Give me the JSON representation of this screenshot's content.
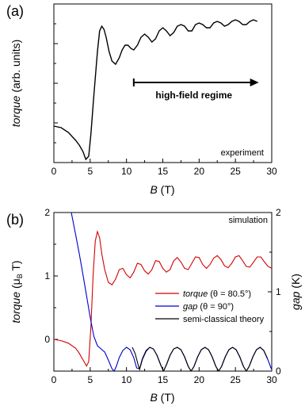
{
  "chart_data": [
    {
      "panel": "(a)",
      "type": "line",
      "xlabel_var": "B",
      "xlabel_unit": " (T)",
      "ylabel_var": "torque",
      "ylabel_unit": " (arb. units)",
      "xlim": [
        0,
        30
      ],
      "xticks": [
        "0",
        "5",
        "10",
        "15",
        "20",
        "25",
        "30"
      ],
      "yticks_labeled": false,
      "annotation_corner": "experiment",
      "regime_label": "high-field regime",
      "regime_arrow_x": [
        11,
        28
      ],
      "series": [
        {
          "color": "#000000",
          "x": [
            0,
            1,
            2,
            3,
            3.5,
            4,
            4.4,
            4.8,
            5.1,
            5.5,
            6,
            6.3,
            6.6,
            6.9,
            7.2,
            7.6,
            8,
            8.5,
            9,
            9.4,
            9.8,
            10.2,
            10.6,
            11,
            11.5,
            12,
            12.5,
            13,
            13.5,
            14,
            14.5,
            15,
            15.5,
            16,
            16.5,
            17,
            17.5,
            18,
            18.5,
            19,
            19.5,
            20,
            20.5,
            21,
            21.5,
            22,
            22.5,
            23,
            23.5,
            24,
            24.5,
            25,
            25.5,
            26,
            26.5,
            27,
            27.5,
            28
          ],
          "y": [
            0.23,
            0.22,
            0.19,
            0.14,
            0.11,
            0.07,
            0.02,
            0.04,
            0.18,
            0.42,
            0.7,
            0.83,
            0.86,
            0.84,
            0.79,
            0.7,
            0.64,
            0.62,
            0.66,
            0.71,
            0.74,
            0.74,
            0.72,
            0.71,
            0.74,
            0.79,
            0.81,
            0.79,
            0.76,
            0.78,
            0.83,
            0.85,
            0.83,
            0.8,
            0.82,
            0.86,
            0.87,
            0.86,
            0.83,
            0.83,
            0.87,
            0.88,
            0.87,
            0.85,
            0.85,
            0.88,
            0.89,
            0.88,
            0.86,
            0.87,
            0.89,
            0.9,
            0.89,
            0.87,
            0.87,
            0.89,
            0.9,
            0.89
          ]
        }
      ]
    },
    {
      "panel": "(b)",
      "type": "line",
      "xlabel_var": "B",
      "xlabel_unit": " (T)",
      "ylabel_left_var": "torque",
      "ylabel_left_unit": " (μ",
      "ylabel_left_sub": "B",
      "ylabel_left_end": " T)",
      "ylabel_right_var": "gap",
      "ylabel_right_unit": " (K)",
      "xlim": [
        0,
        30
      ],
      "ylim_left": [
        -0.5,
        2
      ],
      "ylim_right": [
        0,
        2
      ],
      "xticks": [
        "0",
        "5",
        "10",
        "15",
        "20",
        "25",
        "30"
      ],
      "yticks_left": [
        "0",
        "1",
        "2"
      ],
      "yticks_right": [
        "0",
        "1",
        "2"
      ],
      "annotation_corner": "simulation",
      "legend": [
        {
          "var": "torque",
          "rest": " (θ = 80.5°)",
          "color": "#d40000"
        },
        {
          "var": "gap",
          "rest": " (θ = 90°)",
          "color": "#0000cc"
        },
        {
          "var": "",
          "rest": "semi-classical theory",
          "color": "#000000"
        }
      ],
      "series": [
        {
          "axis": "left",
          "color": "#d40000",
          "x": [
            0,
            1,
            2,
            3,
            3.5,
            4,
            4.5,
            4.8,
            5.1,
            5.4,
            5.7,
            6,
            6.3,
            6.6,
            7,
            7.5,
            8,
            8.5,
            9,
            9.5,
            10,
            10.5,
            11,
            11.5,
            12,
            12.5,
            13,
            13.5,
            14,
            14.5,
            15,
            15.5,
            16,
            16.5,
            17,
            17.5,
            18,
            18.5,
            19,
            19.5,
            20,
            20.5,
            21,
            21.5,
            22,
            22.5,
            23,
            23.5,
            24,
            24.5,
            25,
            25.5,
            26,
            26.5,
            27,
            27.5,
            28,
            28.5,
            29,
            29.5,
            30
          ],
          "y": [
            0.0,
            -0.02,
            -0.06,
            -0.14,
            -0.22,
            -0.32,
            -0.42,
            -0.35,
            0.2,
            1.0,
            1.55,
            1.7,
            1.6,
            1.35,
            1.1,
            0.9,
            0.86,
            0.95,
            1.1,
            1.12,
            1.02,
            0.97,
            1.06,
            1.2,
            1.18,
            1.08,
            1.03,
            1.1,
            1.24,
            1.23,
            1.12,
            1.06,
            1.1,
            1.24,
            1.29,
            1.22,
            1.12,
            1.1,
            1.2,
            1.3,
            1.29,
            1.18,
            1.12,
            1.18,
            1.28,
            1.32,
            1.26,
            1.16,
            1.13,
            1.2,
            1.3,
            1.32,
            1.24,
            1.15,
            1.14,
            1.22,
            1.3,
            1.3,
            1.22,
            1.15,
            1.12
          ]
        },
        {
          "axis": "right",
          "color": "#0000cc",
          "x": [
            2.4,
            3,
            3.5,
            4,
            4.5,
            5,
            5.5,
            6,
            6.5,
            7,
            7.5,
            8,
            8.3,
            8.6,
            9,
            9.5,
            10,
            10.5,
            11,
            11.4,
            11.8,
            12.2,
            12.7,
            13.2,
            13.7,
            14.2,
            14.7,
            15.1,
            15.5,
            16,
            16.5,
            17,
            17.5,
            18,
            18.5,
            18.9,
            19.3,
            19.8,
            20.3,
            20.8,
            21.3,
            21.8,
            22.3,
            22.7,
            23.1,
            23.6,
            24.1,
            24.6,
            25.1,
            25.6,
            26.1,
            26.5,
            26.9,
            27.4,
            27.9,
            28.4,
            28.9,
            29.4,
            29.9,
            30
          ],
          "y": [
            2.0,
            1.72,
            1.48,
            1.22,
            0.95,
            0.68,
            0.44,
            0.32,
            0.28,
            0.24,
            0.14,
            0.03,
            0.0,
            0.06,
            0.17,
            0.26,
            0.3,
            0.27,
            0.17,
            0.04,
            0.03,
            0.16,
            0.26,
            0.3,
            0.28,
            0.2,
            0.08,
            0.0,
            0.08,
            0.2,
            0.28,
            0.3,
            0.27,
            0.18,
            0.06,
            0.0,
            0.06,
            0.18,
            0.27,
            0.3,
            0.27,
            0.18,
            0.06,
            0.0,
            0.06,
            0.18,
            0.27,
            0.3,
            0.27,
            0.18,
            0.06,
            0.0,
            0.06,
            0.18,
            0.27,
            0.3,
            0.26,
            0.16,
            0.04,
            0.02
          ]
        },
        {
          "axis": "right",
          "color": "#000000",
          "x": [
            10.8,
            11.2,
            11.6,
            11.8,
            12.2,
            12.7,
            13.2,
            13.7,
            14.2,
            14.7,
            15.1,
            15.5,
            16,
            16.5,
            17,
            17.5,
            18,
            18.5,
            18.9,
            19.3,
            19.8,
            20.3,
            20.8,
            21.3,
            21.8,
            22.3,
            22.7,
            23.1,
            23.6,
            24.1,
            24.6,
            25.1,
            25.6,
            26.1,
            26.5,
            26.9,
            27.4,
            27.9,
            28.4,
            28.9,
            29.4
          ],
          "y": [
            0.3,
            0.22,
            0.08,
            0.02,
            0.15,
            0.25,
            0.3,
            0.28,
            0.2,
            0.08,
            0.0,
            0.08,
            0.2,
            0.28,
            0.3,
            0.27,
            0.18,
            0.06,
            0.0,
            0.06,
            0.18,
            0.27,
            0.3,
            0.27,
            0.18,
            0.06,
            0.0,
            0.06,
            0.18,
            0.27,
            0.3,
            0.27,
            0.18,
            0.06,
            0.0,
            0.06,
            0.18,
            0.27,
            0.3,
            0.26,
            0.16
          ]
        }
      ]
    }
  ]
}
